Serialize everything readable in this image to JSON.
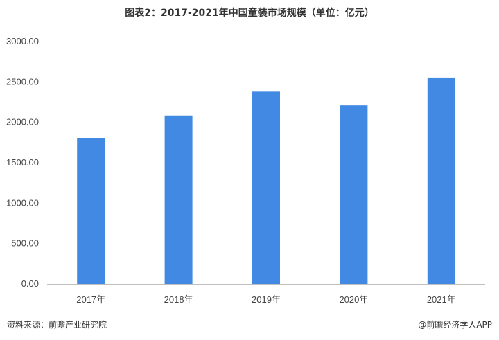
{
  "chart_data": {
    "type": "bar",
    "title": "图表2：2017-2021年中国童装市场规模（单位：亿元）",
    "categories": [
      "2017年",
      "2018年",
      "2019年",
      "2020年",
      "2021年"
    ],
    "values": [
      1800,
      2085,
      2380,
      2210,
      2555
    ],
    "ylim": [
      0,
      3000
    ],
    "yticks": [
      "0.00",
      "500.00",
      "1000.00",
      "1500.00",
      "2000.00",
      "2500.00",
      "3000.00"
    ],
    "bar_color": "#4189e3",
    "grid": false,
    "legend": "none"
  },
  "footer": {
    "source": "资料来源：前瞻产业研究院",
    "brand": "@前瞻经济学人APP"
  }
}
